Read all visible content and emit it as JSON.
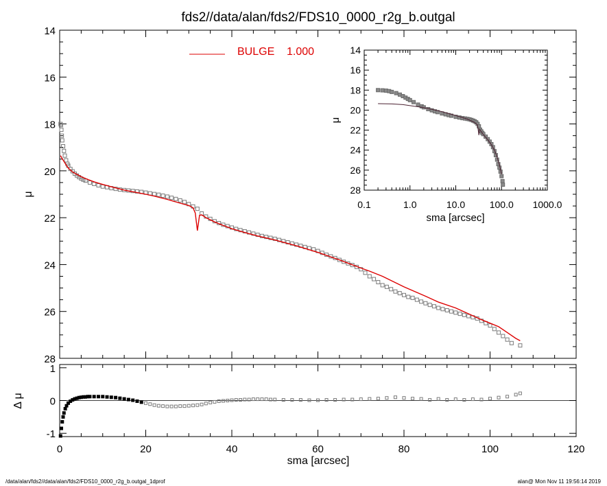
{
  "page": {
    "title": "fds2//data/alan/fds2/FDS10_0000_r2g_b.outgal",
    "footer_left": "/data/alan/fds2//data/alan/fds2/FDS10_0000_r2g_b.outgal_1dprof",
    "footer_right": "alan@  Mon Nov 11 19:56:14 2019"
  },
  "colors": {
    "model": "#dd0000",
    "data": "#7a7a7a",
    "axis": "#000000",
    "inset_model": "#4a2030"
  },
  "chart_data": [
    {
      "id": "main",
      "type": "scatter",
      "title": "fds2//data/alan/fds2/FDS10_0000_r2g_b.outgal",
      "xlabel": "sma [arcsec]",
      "ylabel": "μ",
      "xlim": [
        0,
        120
      ],
      "ylim": [
        28,
        14
      ],
      "y_inverted": true,
      "x_ticks": [
        "0",
        "20",
        "40",
        "60",
        "80",
        "100",
        "120"
      ],
      "y_ticks": [
        "14",
        "16",
        "18",
        "20",
        "22",
        "24",
        "26",
        "28"
      ],
      "legend": {
        "label": "BULGE",
        "value": "1.000",
        "placement": "top"
      },
      "series": [
        {
          "name": "BULGE",
          "style": "line",
          "x": [
            0.2,
            0.5,
            1,
            1.5,
            2,
            3,
            4,
            5,
            6,
            7,
            8,
            10,
            12,
            15,
            18,
            20,
            22,
            25,
            28,
            30,
            31,
            31.5,
            32,
            32.5,
            33,
            34,
            36,
            38,
            40,
            43,
            46,
            50,
            55,
            60,
            65,
            70,
            72,
            75,
            80,
            85,
            88,
            92,
            95,
            98,
            100,
            102,
            104,
            106,
            107
          ],
          "y": [
            19.35,
            19.45,
            19.6,
            19.75,
            19.88,
            20.05,
            20.15,
            20.25,
            20.33,
            20.4,
            20.47,
            20.58,
            20.68,
            20.82,
            20.93,
            21.0,
            21.08,
            21.22,
            21.38,
            21.48,
            21.58,
            21.8,
            22.55,
            21.9,
            21.88,
            22.0,
            22.18,
            22.33,
            22.47,
            22.63,
            22.78,
            22.95,
            23.2,
            23.48,
            23.8,
            24.15,
            24.28,
            24.5,
            24.95,
            25.35,
            25.6,
            25.85,
            26.1,
            26.35,
            26.5,
            26.65,
            26.9,
            27.15,
            27.25
          ]
        },
        {
          "name": "",
          "style": "markers",
          "x": [
            0.2,
            0.3,
            0.4,
            0.5,
            0.6,
            0.8,
            1,
            1.2,
            1.5,
            1.8,
            2,
            2.5,
            3,
            3.5,
            4,
            4.5,
            5,
            5.5,
            6,
            7,
            8,
            9,
            10,
            11,
            12,
            13,
            14,
            15,
            16,
            17,
            18,
            19,
            20,
            21,
            22,
            23,
            24,
            25,
            26,
            27,
            28,
            29,
            30,
            31,
            32,
            33,
            34,
            35,
            36,
            37,
            38,
            39,
            40,
            41,
            42,
            43,
            44,
            45,
            46,
            47,
            48,
            49,
            50,
            51,
            52,
            53,
            54,
            55,
            56,
            57,
            58,
            59,
            60,
            61,
            62,
            63,
            64,
            65,
            66,
            67,
            68,
            69,
            70,
            71,
            72,
            73,
            74,
            75,
            76,
            77,
            78,
            79,
            80,
            81,
            82,
            83,
            84,
            85,
            86,
            87,
            88,
            89,
            90,
            91,
            92,
            93,
            94,
            95,
            96,
            97,
            98,
            99,
            100,
            101,
            102,
            103,
            104,
            105,
            107
          ],
          "y": [
            18.0,
            18.05,
            18.25,
            18.5,
            18.7,
            18.95,
            19.15,
            19.35,
            19.55,
            19.7,
            19.78,
            19.92,
            20.02,
            20.12,
            20.2,
            20.27,
            20.33,
            20.38,
            20.42,
            20.5,
            20.56,
            20.62,
            20.67,
            20.7,
            20.74,
            20.77,
            20.8,
            20.82,
            20.84,
            20.86,
            20.88,
            20.9,
            20.93,
            20.96,
            20.99,
            21.02,
            21.06,
            21.1,
            21.15,
            21.2,
            21.26,
            21.33,
            21.42,
            21.52,
            21.62,
            21.82,
            21.95,
            22.05,
            22.15,
            22.23,
            22.3,
            22.36,
            22.42,
            22.48,
            22.53,
            22.58,
            22.63,
            22.68,
            22.73,
            22.78,
            22.82,
            22.86,
            22.9,
            22.95,
            23.0,
            23.05,
            23.1,
            23.15,
            23.2,
            23.25,
            23.3,
            23.35,
            23.42,
            23.5,
            23.58,
            23.65,
            23.72,
            23.8,
            23.88,
            23.95,
            24.02,
            24.1,
            24.2,
            24.35,
            24.5,
            24.62,
            24.75,
            24.88,
            24.95,
            25.05,
            25.15,
            25.22,
            25.3,
            25.38,
            25.42,
            25.5,
            25.58,
            25.65,
            25.72,
            25.78,
            25.85,
            25.9,
            25.95,
            26.0,
            26.05,
            26.1,
            26.15,
            26.2,
            26.25,
            26.3,
            26.4,
            26.5,
            26.6,
            26.75,
            26.9,
            27.05,
            27.2,
            27.35,
            27.45
          ]
        }
      ]
    },
    {
      "id": "residual",
      "type": "scatter",
      "xlabel": "sma [arcsec]",
      "ylabel": "Δ μ",
      "xlim": [
        0,
        120
      ],
      "ylim": [
        -1.1,
        1.1
      ],
      "x_ticks": [
        "0",
        "20",
        "40",
        "60",
        "80",
        "100",
        "120"
      ],
      "y_ticks": [
        "-1",
        "0",
        "1"
      ],
      "zero_line": 0,
      "series": [
        {
          "name": "",
          "style": "markers",
          "x": [
            0.2,
            0.4,
            0.6,
            0.8,
            1,
            1.3,
            1.6,
            2,
            2.5,
            3,
            3.5,
            4,
            4.5,
            5,
            5.5,
            6,
            6.5,
            7,
            8,
            9,
            10,
            11,
            12,
            13,
            14,
            15,
            16,
            17,
            18,
            19,
            20,
            21,
            22,
            23,
            24,
            25,
            26,
            27,
            28,
            29,
            30,
            31,
            32,
            33,
            34,
            35,
            36,
            37,
            38,
            39,
            40,
            41,
            42,
            43,
            44,
            45,
            46,
            47,
            48,
            49,
            50,
            52,
            54,
            56,
            58,
            60,
            62,
            64,
            66,
            68,
            70,
            72,
            74,
            76,
            78,
            80,
            82,
            84,
            86,
            88,
            90,
            92,
            94,
            96,
            98,
            100,
            102,
            104,
            106,
            107
          ],
          "y": [
            -1.08,
            -0.85,
            -0.65,
            -0.5,
            -0.38,
            -0.25,
            -0.16,
            -0.08,
            -0.02,
            0.02,
            0.05,
            0.07,
            0.09,
            0.1,
            0.11,
            0.11,
            0.12,
            0.12,
            0.12,
            0.12,
            0.12,
            0.11,
            0.1,
            0.09,
            0.07,
            0.05,
            0.03,
            0.01,
            -0.02,
            -0.05,
            -0.08,
            -0.11,
            -0.14,
            -0.16,
            -0.17,
            -0.18,
            -0.18,
            -0.18,
            -0.17,
            -0.17,
            -0.16,
            -0.15,
            -0.14,
            -0.12,
            -0.09,
            -0.06,
            -0.04,
            -0.02,
            -0.01,
            0.0,
            0.01,
            0.02,
            0.02,
            0.03,
            0.03,
            0.04,
            0.04,
            0.04,
            0.04,
            0.03,
            0.03,
            0.02,
            0.02,
            0.02,
            0.01,
            0.01,
            0.02,
            0.02,
            0.03,
            0.03,
            0.04,
            0.05,
            0.06,
            0.08,
            0.1,
            0.08,
            0.06,
            0.05,
            0.02,
            0.05,
            0.02,
            0.04,
            0.02,
            0.04,
            0.03,
            0.06,
            0.09,
            0.12,
            0.18,
            0.22
          ]
        }
      ]
    },
    {
      "id": "inset",
      "type": "scatter",
      "xlabel": "sma [arcsec]",
      "ylabel": "μ",
      "x_scale": "log",
      "xlim": [
        0.1,
        1000
      ],
      "ylim": [
        28,
        14
      ],
      "y_inverted": true,
      "x_ticks": [
        "0.1",
        "1.0",
        "10.0",
        "100.0",
        "1000.0"
      ],
      "y_ticks": [
        "14",
        "16",
        "18",
        "20",
        "22",
        "24",
        "26",
        "28"
      ],
      "series": [
        {
          "name": "",
          "style": "line",
          "x": [
            0.2,
            0.4,
            0.7,
            1,
            2,
            3,
            5,
            8,
            12,
            18,
            25,
            28,
            30,
            32,
            33,
            40,
            50,
            60,
            70,
            80,
            90,
            100
          ],
          "y": [
            19.35,
            19.38,
            19.45,
            19.55,
            19.75,
            19.92,
            20.15,
            20.42,
            20.65,
            20.9,
            21.2,
            21.35,
            21.5,
            22.5,
            21.9,
            22.45,
            22.95,
            23.45,
            24.0,
            24.7,
            25.5,
            26.4
          ]
        },
        {
          "name": "",
          "style": "markers",
          "x": [
            0.2,
            0.25,
            0.3,
            0.35,
            0.4,
            0.5,
            0.6,
            0.7,
            0.8,
            0.9,
            1,
            1.2,
            1.5,
            1.8,
            2,
            2.5,
            3,
            3.5,
            4,
            5,
            6,
            7,
            8,
            10,
            12,
            14,
            16,
            18,
            20,
            22,
            24,
            26,
            28,
            30,
            32,
            34,
            36,
            38,
            40,
            45,
            50,
            55,
            60,
            65,
            70,
            75,
            80,
            85,
            90,
            95,
            100,
            105,
            107
          ],
          "y": [
            18.0,
            18.02,
            18.05,
            18.1,
            18.18,
            18.3,
            18.45,
            18.6,
            18.75,
            18.88,
            19.0,
            19.2,
            19.45,
            19.62,
            19.72,
            19.9,
            20.02,
            20.12,
            20.2,
            20.33,
            20.42,
            20.5,
            20.56,
            20.67,
            20.74,
            20.8,
            20.84,
            20.88,
            20.92,
            20.98,
            21.05,
            21.12,
            21.22,
            21.38,
            21.62,
            21.95,
            22.12,
            22.28,
            22.4,
            22.65,
            22.9,
            23.15,
            23.4,
            23.7,
            24.1,
            24.5,
            24.95,
            25.4,
            25.75,
            26.15,
            26.6,
            27.1,
            27.45
          ]
        }
      ]
    }
  ]
}
